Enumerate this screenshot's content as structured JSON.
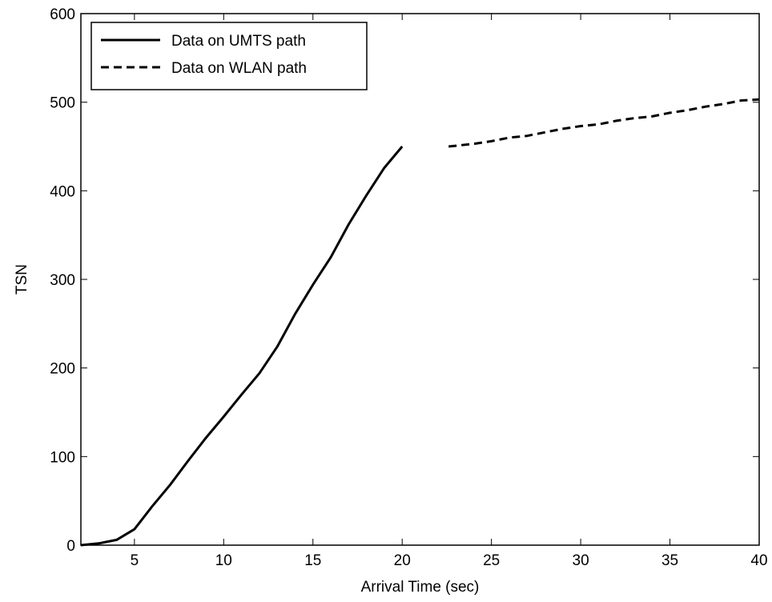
{
  "chart_data": {
    "type": "line",
    "title": "",
    "xlabel": "Arrival Time (sec)",
    "ylabel": "TSN",
    "xlim": [
      2,
      40
    ],
    "ylim": [
      0,
      600
    ],
    "xticks": [
      5,
      10,
      15,
      20,
      25,
      30,
      35,
      40
    ],
    "xtick_labels": [
      "5",
      "10",
      "15",
      "20",
      "25",
      "30",
      "35",
      "40"
    ],
    "yticks": [
      0,
      100,
      200,
      300,
      400,
      500,
      600
    ],
    "ytick_labels": [
      "0",
      "100",
      "200",
      "300",
      "400",
      "500",
      "600"
    ],
    "grid": false,
    "legend_position": "top-left",
    "series": [
      {
        "name": "Data on UMTS path",
        "style": "solid",
        "color": "#000000",
        "x": [
          2,
          3,
          4,
          5,
          6,
          7,
          8,
          9,
          10,
          11,
          12,
          13,
          14,
          15,
          16,
          17,
          18,
          19,
          20
        ],
        "y": [
          0,
          2,
          6,
          18,
          44,
          68,
          95,
          121,
          145,
          170,
          194,
          224,
          261,
          294,
          325,
          362,
          395,
          426,
          450
        ]
      },
      {
        "name": "Data on WLAN path",
        "style": "dashed",
        "color": "#000000",
        "x": [
          22.6,
          24,
          25,
          26,
          27,
          28,
          29,
          30,
          31,
          32,
          33,
          34,
          35,
          36,
          37,
          38,
          39,
          40
        ],
        "y": [
          450,
          453,
          456,
          460,
          462,
          466,
          470,
          473,
          475,
          479,
          482,
          484,
          488,
          491,
          495,
          498,
          502,
          503
        ]
      }
    ]
  }
}
